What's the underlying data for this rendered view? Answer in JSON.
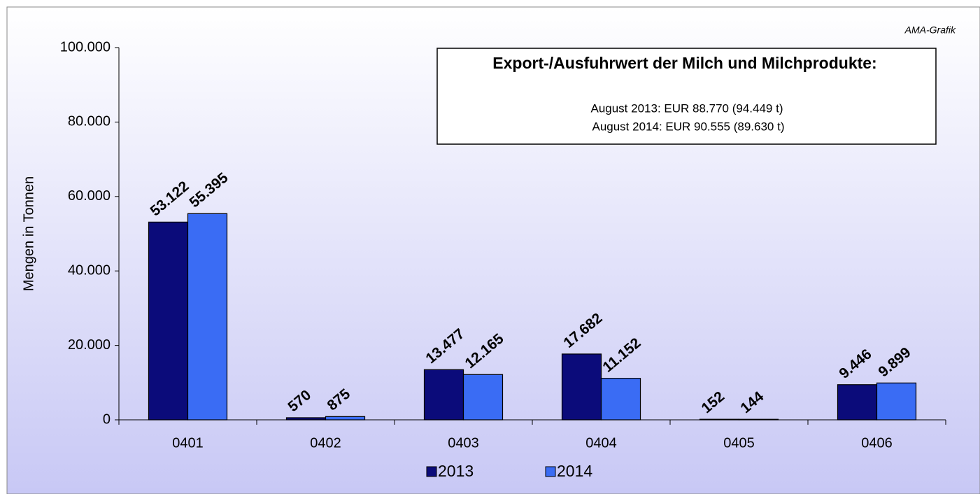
{
  "chart_data": {
    "type": "bar",
    "annotation": "AMA-Grafik",
    "info_box": {
      "title": "Export-/Ausfuhrwert der Milch und Milchprodukte:",
      "lines": [
        "August 2013: EUR 88.770 (94.449 t)",
        "August 2014: EUR 90.555 (89.630 t)"
      ]
    },
    "y_label": "Mengen in Tonnen",
    "categories": [
      "0401",
      "0402",
      "0403",
      "0404",
      "0405",
      "0406"
    ],
    "series": [
      {
        "name": "2013",
        "color": "#0b0b7a",
        "values": [
          53122,
          570,
          13477,
          17682,
          152,
          9446
        ],
        "value_labels": [
          "53.122",
          "570",
          "13.477",
          "17.682",
          "152",
          "9.446"
        ]
      },
      {
        "name": "2014",
        "color": "#3a6cf4",
        "values": [
          55395,
          875,
          12165,
          11152,
          144,
          9899
        ],
        "value_labels": [
          "55.395",
          "875",
          "12.165",
          "11.152",
          "144",
          "9.899"
        ]
      }
    ],
    "ylim": [
      0,
      100000
    ],
    "yticks": [
      0,
      {
        "value": 20000,
        "label": "20.000"
      },
      {
        "value": 40000,
        "label": "40.000"
      },
      {
        "value": 60000,
        "label": "60.000"
      },
      {
        "value": 80000,
        "label": "80.000"
      },
      {
        "value": 100000,
        "label": "100.000"
      }
    ],
    "legend": "bottom"
  }
}
